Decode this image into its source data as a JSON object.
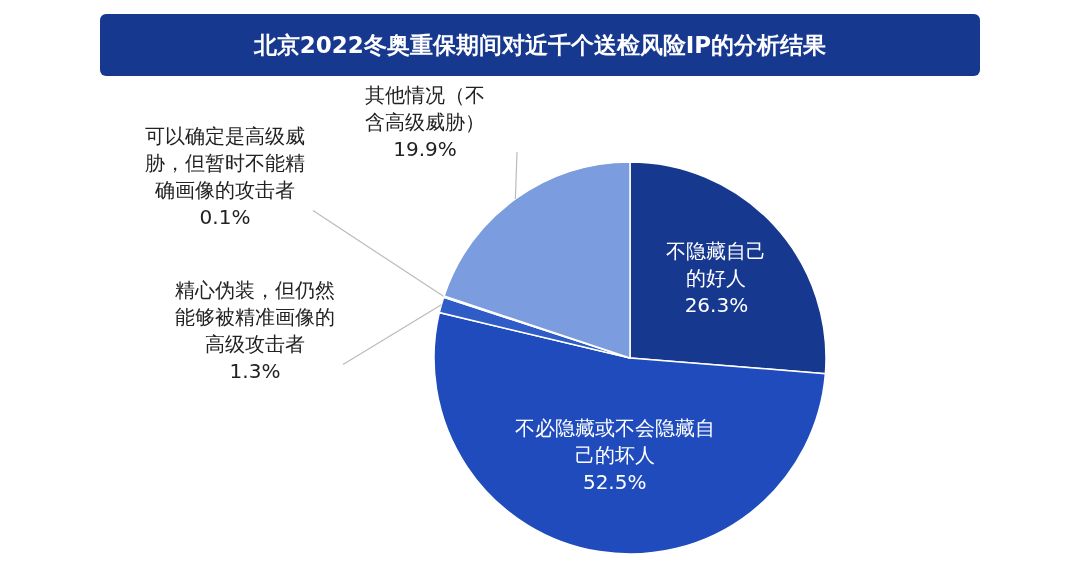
{
  "chart_data": {
    "type": "pie",
    "title": "北京2022冬奥重保期间对近千个送检风险IP的分析结果",
    "categories": [
      "不隐藏自己的好人",
      "不必隐藏或不会隐藏自己的坏人",
      "精心伪装，但仍然能够被精准画像的高级攻击者",
      "可以确定是高级威胁，但暂时不能精确画像的攻击者",
      "其他情况（不含高级威胁）"
    ],
    "values": [
      26.3,
      52.5,
      1.3,
      0.1,
      19.9
    ],
    "value_labels": [
      "26.3%",
      "52.5%",
      "1.3%",
      "0.1%",
      "19.9%"
    ],
    "colors": [
      "#17388f",
      "#1f4bbd",
      "#2f5cc6",
      "#9fb6e8",
      "#7b9ddf"
    ]
  }
}
